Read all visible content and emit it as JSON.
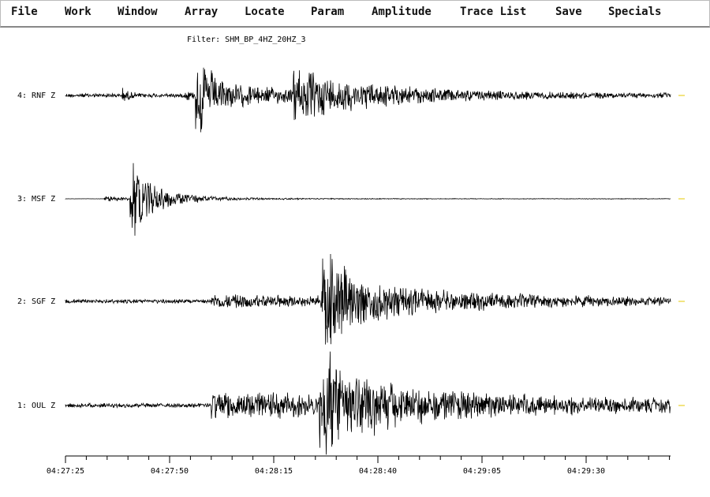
{
  "menu": [
    "File",
    "Work",
    "Window",
    "Array",
    "Locate",
    "Param",
    "Amplitude",
    "Trace List",
    "Save",
    "Specials"
  ],
  "filter": "Filter: SHM_BP_4HZ_20HZ_3",
  "traces": [
    "4: RNF Z",
    "3: MSF Z",
    "2: SGF Z",
    "1: OUL Z"
  ],
  "time_axis": {
    "labels": [
      "04:27:25",
      "04:27:50",
      "04:28:15",
      "04:28:40",
      "04:29:05",
      "04:29:30"
    ]
  }
}
